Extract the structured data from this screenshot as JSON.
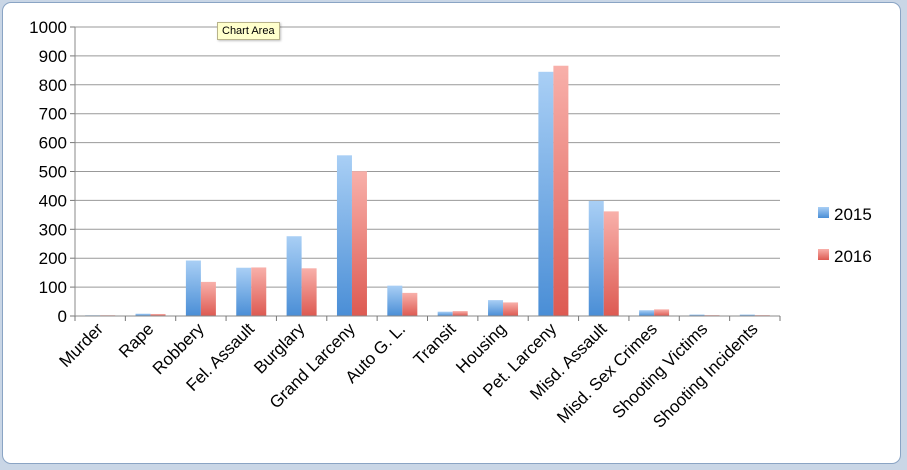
{
  "tooltip": {
    "text": "Chart Area"
  },
  "colors": {
    "series_2015": "#5b9bd5",
    "series_2016": "#e8726a",
    "grid": "#999999"
  },
  "chart_data": {
    "type": "bar",
    "categories": [
      "Murder",
      "Rape",
      "Robbery",
      "Fel. Assault",
      "Burglary",
      "Grand Larceny",
      "Auto G. L.",
      "Transit",
      "Housing",
      "Pet. Larceny",
      "Misd. Assault",
      "Misd. Sex Crimes",
      "Shooting Victims",
      "Shooting Incidents"
    ],
    "series": [
      {
        "name": "2015",
        "values": [
          2,
          8,
          192,
          167,
          276,
          556,
          105,
          15,
          55,
          845,
          398,
          20,
          5,
          5
        ]
      },
      {
        "name": "2016",
        "values": [
          1,
          7,
          118,
          168,
          165,
          501,
          80,
          17,
          47,
          866,
          362,
          23,
          3,
          3
        ]
      }
    ],
    "ylim": [
      0,
      1000
    ],
    "yticks": [
      0,
      100,
      200,
      300,
      400,
      500,
      600,
      700,
      800,
      900,
      1000
    ],
    "grid": true,
    "legend": "right"
  }
}
